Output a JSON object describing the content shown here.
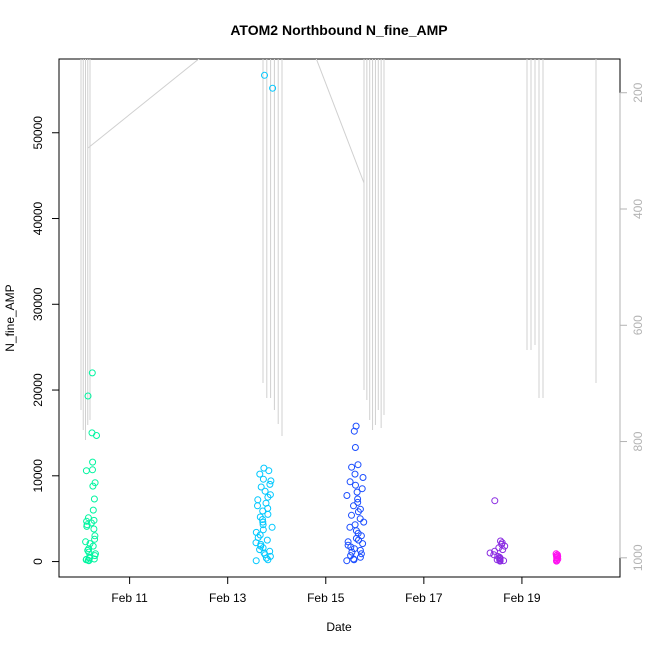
{
  "chart_data": {
    "type": "scatter",
    "title": "ATOM2 Northbound N_fine_AMP",
    "xlabel": "Date",
    "ylabel": "N_fine_AMP",
    "x_tick_labels": [
      "Feb 11",
      "Feb 13",
      "Feb 15",
      "Feb 17",
      "Feb 19"
    ],
    "y_ticks": [
      0,
      10000,
      20000,
      30000,
      40000,
      50000
    ],
    "y_tick_labels": [
      "0",
      "10000",
      "20000",
      "30000",
      "40000",
      "50000"
    ],
    "y_right_ticks": [
      200,
      400,
      600,
      800,
      1000
    ],
    "y_right_tick_labels": [
      "200",
      "400",
      "600",
      "800",
      "1000"
    ],
    "xlim_days": [
      9.56,
      21.0
    ],
    "ylim": [
      -1800,
      58600
    ],
    "y_right_lim": [
      1033,
      142
    ],
    "grid": false,
    "legend": "none",
    "point_style": "open circles, color gradient by time (green to cyan to blue to magenta)",
    "clusters": [
      {
        "day": 10.2,
        "spread": 0.25,
        "color": "#00f5a0",
        "values": [
          22000,
          19300,
          15000,
          14700,
          11600,
          10700,
          10600,
          9200,
          8800,
          7300,
          6000,
          5100,
          4800,
          4700,
          4500,
          4300,
          4100,
          3800,
          3000,
          2600,
          2300,
          2100,
          1800,
          1500,
          1300,
          1100,
          900,
          700,
          500,
          400,
          300,
          250,
          200,
          150,
          100
        ]
      },
      {
        "day": 13.75,
        "spread": 0.35,
        "color": "#00c8ff",
        "values": [
          56700,
          55200,
          10900,
          10600,
          10200,
          9600,
          9400,
          9000,
          8700,
          8200,
          7800,
          7500,
          7200,
          6800,
          6500,
          6200,
          5900,
          5500,
          5200,
          4900,
          4600,
          4300,
          4000,
          3700,
          3400,
          3100,
          2800,
          2500,
          2200,
          2000,
          1800,
          1600,
          1400,
          1200,
          1000,
          800,
          600,
          400,
          200,
          100
        ]
      },
      {
        "day": 15.6,
        "spread": 0.35,
        "color": "#1a4dff",
        "values": [
          15800,
          15200,
          13300,
          11300,
          11000,
          10200,
          9800,
          9300,
          8900,
          8500,
          8100,
          7700,
          7300,
          6900,
          6500,
          6100,
          5800,
          5400,
          5000,
          4600,
          4300,
          4000,
          3600,
          3300,
          3000,
          2700,
          2500,
          2300,
          2100,
          1900,
          1700,
          1500,
          1300,
          1100,
          900,
          700,
          500,
          300,
          200,
          100
        ]
      },
      {
        "day": 18.5,
        "spread": 0.3,
        "color": "#8a2be2",
        "values": [
          7100,
          2400,
          2200,
          2000,
          1800,
          1600,
          1400,
          1200,
          1000,
          800,
          600,
          500,
          400,
          300,
          200,
          150,
          100,
          50
        ]
      },
      {
        "day": 19.72,
        "spread": 0.06,
        "color": "#ff10f0",
        "values": [
          900,
          800,
          700,
          600,
          500,
          400,
          300,
          200,
          100,
          50
        ]
      }
    ]
  }
}
